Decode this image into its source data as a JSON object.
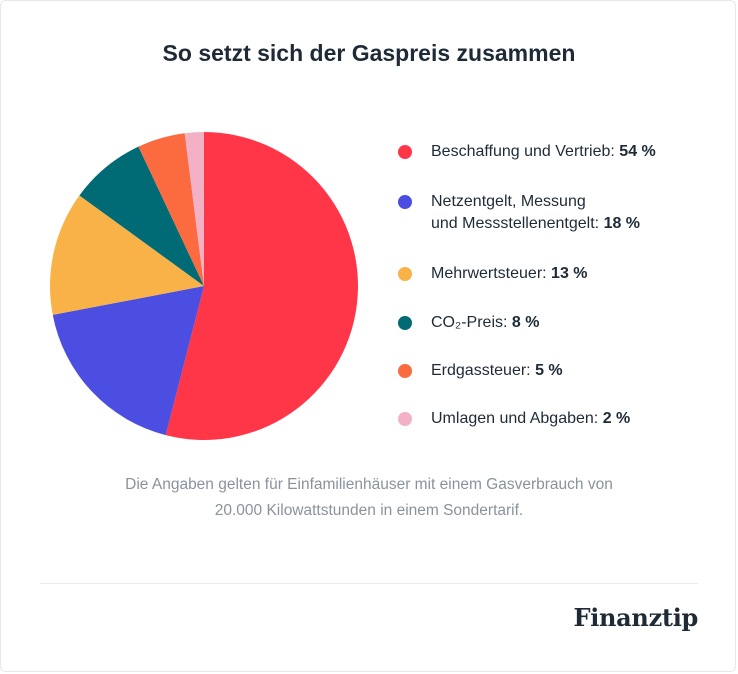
{
  "title": "So setzt sich der Gaspreis zusammen",
  "chart_data": {
    "type": "pie",
    "title": "So setzt sich der Gaspreis zusammen",
    "slices": [
      {
        "line1": "Beschaffung und Vertrieb:",
        "line2": "",
        "value": 54,
        "pct_label": "54 %",
        "color": "#ff3648"
      },
      {
        "line1": "Netzentgelt, Messung",
        "line2": "und Messstellenentgelt:",
        "value": 18,
        "pct_label": "18 %",
        "color": "#4b4ee0"
      },
      {
        "line1": "Mehrwertsteuer:",
        "line2": "",
        "value": 13,
        "pct_label": "13 %",
        "color": "#f9b247"
      },
      {
        "line1": "CO₂-Preis:",
        "line2": "",
        "value": 8,
        "pct_label": "8 %",
        "color": "#006b74"
      },
      {
        "line1": "Erdgassteuer:",
        "line2": "",
        "value": 5,
        "pct_label": "5 %",
        "color": "#fc6b40"
      },
      {
        "line1": "Umlagen und Abgaben:",
        "line2": "",
        "value": 2,
        "pct_label": "2 %",
        "color": "#f2b1c4"
      }
    ],
    "legend_position": "right"
  },
  "footnote": {
    "line1": "Die Angaben gelten für Einfamilienhäuser mit einem Gasverbrauch von",
    "line2": "20.000 Kilowattstunden in einem Sondertarif."
  },
  "brand": "Finanztip"
}
